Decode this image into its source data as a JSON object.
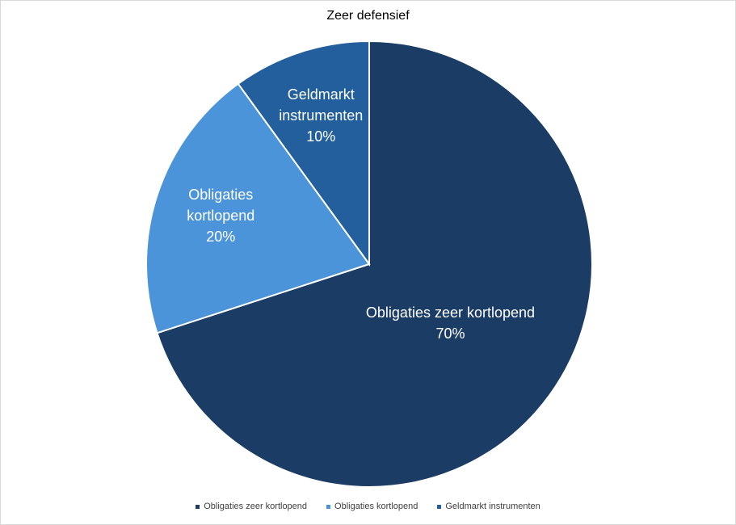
{
  "chart_data": {
    "type": "pie",
    "title": "Zeer defensief",
    "categories": [
      "Obligaties zeer kortlopend",
      "Obligaties kortlopend",
      "Geldmarkt instrumenten"
    ],
    "values": [
      70,
      20,
      10
    ],
    "value_labels": [
      "70%",
      "20%",
      "10%"
    ],
    "colors": [
      "#1b3c64",
      "#4b94d9",
      "#235f9d"
    ],
    "legend": "bottom"
  }
}
